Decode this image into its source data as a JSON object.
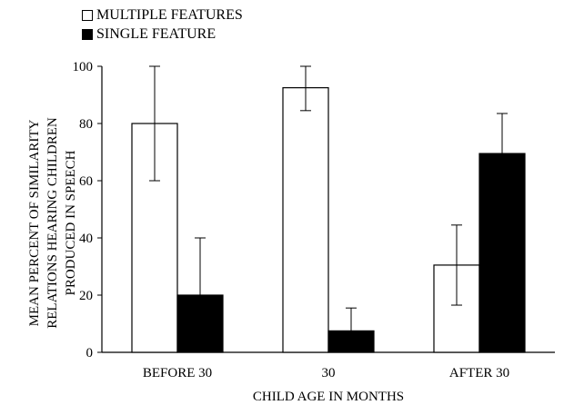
{
  "chart_data": {
    "type": "bar",
    "categories": [
      "BEFORE 30",
      "30",
      "AFTER 30"
    ],
    "series": [
      {
        "name": "MULTIPLE FEATURES",
        "color": "#ffffff",
        "values": [
          80,
          92.5,
          30.5
        ],
        "error": [
          20,
          8,
          14
        ]
      },
      {
        "name": "SINGLE FEATURE",
        "color": "#000000",
        "values": [
          20,
          7.5,
          69.5
        ],
        "error": [
          20,
          8,
          14
        ]
      }
    ],
    "xlabel": "CHILD AGE IN MONTHS",
    "ylabel_lines": [
      "MEAN PERCENT OF SIMILARITY",
      "RELATIONS HEARING CHILDREN",
      "PRODUCED IN SPEECH"
    ],
    "ylim": [
      0,
      100
    ],
    "yticks": [
      0,
      20,
      40,
      60,
      80,
      100
    ],
    "grid": false,
    "legend_position": "top-left"
  }
}
